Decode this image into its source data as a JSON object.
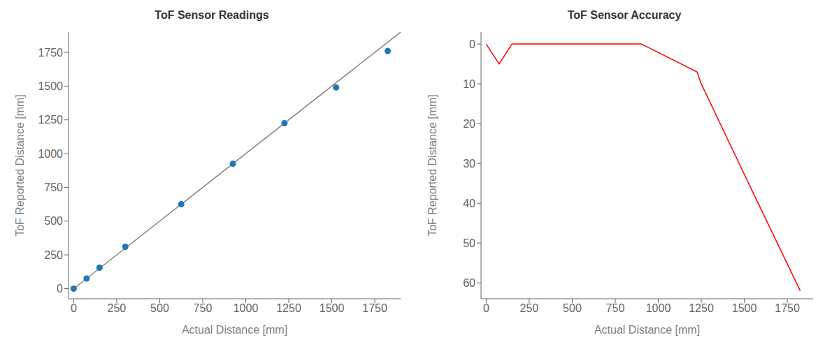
{
  "chart_data": [
    {
      "type": "scatter",
      "title": "ToF Sensor Readings",
      "xlabel": "Actual Distance [mm]",
      "ylabel": "ToF Reported Distance [mm]",
      "series": [
        {
          "type": "line",
          "color": "#808080",
          "x": [
            0,
            1900
          ],
          "values": [
            0,
            1900
          ]
        },
        {
          "type": "scatter",
          "color": "#1f77b4",
          "x": [
            0,
            75,
            150,
            300,
            625,
            925,
            1225,
            1525,
            1825
          ],
          "values": [
            0,
            75,
            155,
            310,
            625,
            925,
            1225,
            1490,
            1760
          ]
        }
      ],
      "xlim": [
        -30,
        1900
      ],
      "ylim": [
        -75,
        1900
      ],
      "xticks": [
        0,
        250,
        500,
        750,
        1000,
        1250,
        1500,
        1750
      ],
      "yticks": [
        0,
        250,
        500,
        750,
        1000,
        1250,
        1500,
        1750
      ],
      "grid": false
    },
    {
      "type": "line",
      "title": "ToF Sensor Accuracy",
      "xlabel": "Actual Distance [mm]",
      "ylabel": "ToF Reported Distance [mm]",
      "series": [
        {
          "color": "red",
          "x": [
            0,
            75,
            150,
            900,
            950,
            1225,
            1250,
            1525,
            1825
          ],
          "values": [
            0,
            5,
            0,
            0,
            1,
            7,
            10,
            35,
            62
          ]
        }
      ],
      "xlim": [
        -30,
        1900
      ],
      "ylim": [
        64,
        -3
      ],
      "xticks": [
        0,
        250,
        500,
        750,
        1000,
        1250,
        1500,
        1750
      ],
      "yticks": [
        0,
        10,
        20,
        30,
        40,
        50,
        60
      ],
      "grid": false
    }
  ]
}
